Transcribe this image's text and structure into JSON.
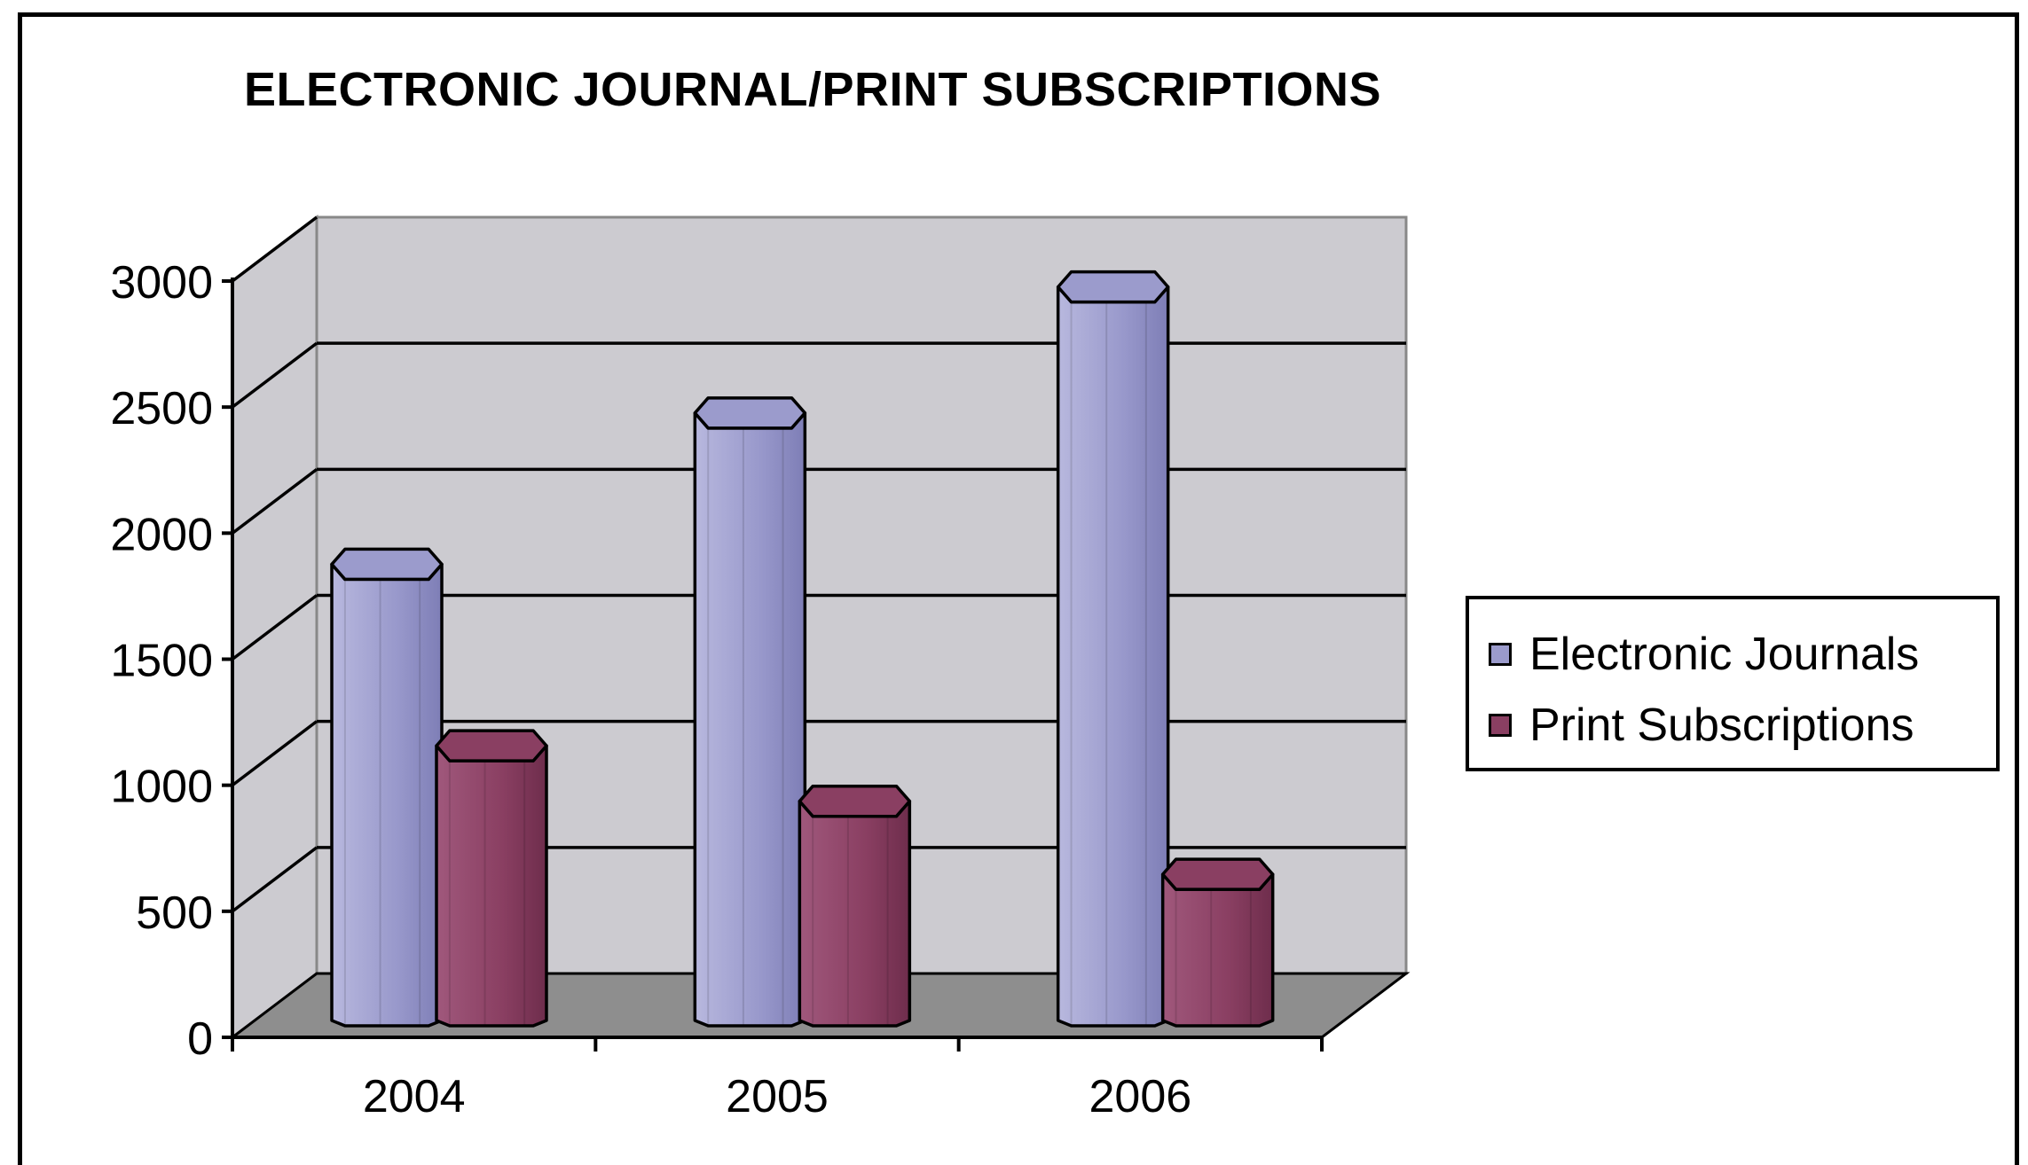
{
  "chart_data": {
    "type": "bar",
    "title": "ELECTRONIC JOURNAL/PRINT SUBSCRIPTIONS",
    "xlabel": "",
    "ylabel": "",
    "categories": [
      "2004",
      "2005",
      "2006"
    ],
    "series": [
      {
        "name": "Electronic Journals",
        "values": [
          1750,
          2350,
          2850
        ],
        "color": "#9b9bcc"
      },
      {
        "name": "Print Subscriptions",
        "values": [
          1030,
          810,
          520
        ],
        "color": "#8a3f62"
      }
    ],
    "ylim": [
      0,
      3000
    ],
    "yticks": [
      "0",
      "500",
      "1000",
      "1500",
      "2000",
      "2500",
      "3000"
    ],
    "grid": true,
    "legend_position": "right",
    "style": "3d-cylinder",
    "wall_color": "#cccbd0",
    "floor_color": "#8e8e8e"
  }
}
